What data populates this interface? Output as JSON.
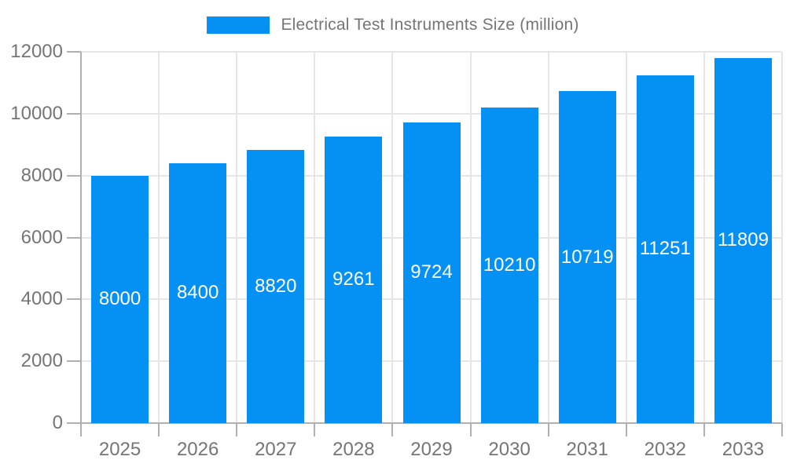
{
  "chart_data": {
    "type": "bar",
    "title": "Electrical Test Instruments Size (million)",
    "categories": [
      "2025",
      "2026",
      "2027",
      "2028",
      "2029",
      "2030",
      "2031",
      "2032",
      "2033"
    ],
    "values": [
      8000,
      8400,
      8820,
      9261,
      9724,
      10210,
      10719,
      11251,
      11809
    ],
    "xlabel": "",
    "ylabel": "",
    "ylim": [
      0,
      12000
    ],
    "yticks": [
      0,
      2000,
      4000,
      6000,
      8000,
      10000,
      12000
    ],
    "grid": true,
    "legend_position": "top",
    "value_labels_shown": true
  },
  "legend": {
    "label": "Electrical Test Instruments Size (million)"
  },
  "colors": {
    "bar": "#0591f4",
    "value_label": "#ffffff",
    "axis": "#b0b0b0",
    "grid": "#e6e6e6",
    "text": "#757575",
    "background": "#ffffff"
  }
}
